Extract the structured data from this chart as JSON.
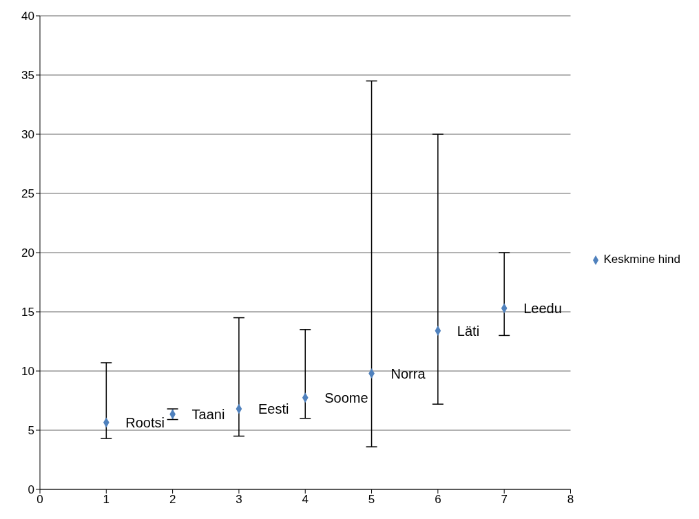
{
  "chart_data": {
    "type": "scatter",
    "x": [
      1,
      2,
      3,
      4,
      5,
      6,
      7
    ],
    "series": [
      {
        "name": "Keskmine hind",
        "color": "#4f81bd",
        "values": [
          5.65,
          6.35,
          6.8,
          7.75,
          9.8,
          13.4,
          15.3
        ],
        "errors": [
          [
            4.3,
            10.7
          ],
          [
            5.9,
            6.8
          ],
          [
            4.5,
            14.5
          ],
          [
            6.0,
            13.5
          ],
          [
            3.6,
            34.5
          ],
          [
            7.2,
            30
          ],
          [
            13.0,
            20
          ]
        ]
      }
    ],
    "annotations": [
      {
        "text": "Rootsi",
        "x": 1,
        "y": 5.65
      },
      {
        "text": "Taani",
        "x": 2,
        "y": 6.35
      },
      {
        "text": "Eesti",
        "x": 3,
        "y": 6.8
      },
      {
        "text": "Soome",
        "x": 4,
        "y": 7.75
      },
      {
        "text": "Norra",
        "x": 5,
        "y": 9.8
      },
      {
        "text": "Läti",
        "x": 6,
        "y": 13.4
      },
      {
        "text": "Leedu",
        "x": 7,
        "y": 15.3
      }
    ],
    "xlim": [
      0,
      8
    ],
    "xticks": [
      0,
      1,
      2,
      3,
      4,
      5,
      6,
      7,
      8
    ],
    "ylim": [
      0,
      40
    ],
    "yticks": [
      0,
      5,
      10,
      15,
      20,
      25,
      30,
      35,
      40
    ],
    "grid": "y",
    "legend": "right",
    "marker": "diamond"
  }
}
